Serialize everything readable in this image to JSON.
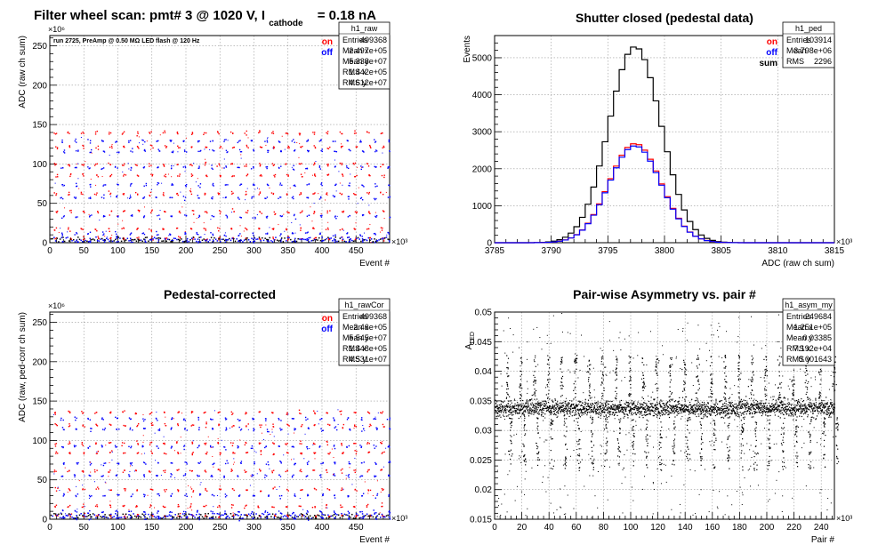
{
  "canvas_title": {
    "prefix": "Filter wheel scan: pmt#   3 @  1020 V, I",
    "subscript": "cathode",
    "suffix": "= 0.18 nA"
  },
  "colors": {
    "on": "#ff0000",
    "off": "#0000ff",
    "sum": "#000000",
    "grid": "#888888"
  },
  "chart_data": [
    {
      "id": "raw",
      "type": "scatter",
      "title": "",
      "annotation": "run 2725, PreAmp @ 0.50 MΩ   LED flash @  120 Hz",
      "xlabel": "Event #",
      "ylabel": "ADC (raw ch sum)",
      "x_exponent": "×10³",
      "y_exponent": "×10⁶",
      "xlim": [
        0,
        499.368
      ],
      "ylim": [
        0,
        263
      ],
      "xticks": [
        0,
        50,
        100,
        150,
        200,
        250,
        300,
        350,
        400,
        450
      ],
      "yticks": [
        0,
        50,
        100,
        150,
        200,
        250
      ],
      "grid": true,
      "legend": {
        "position": "top-right",
        "items": [
          {
            "label": "on",
            "color": "#ff0000"
          },
          {
            "label": "off",
            "color": "#0000ff"
          }
        ]
      },
      "stats": {
        "name": "h1_raw",
        "rows": [
          [
            "Entries",
            "499368"
          ],
          [
            "Mean x",
            "2.497e+05"
          ],
          [
            "Mean y",
            "5.338e+07"
          ],
          [
            "RMS x",
            "1.442e+05"
          ],
          [
            "RMS y",
            "4.612e+07"
          ]
        ]
      },
      "bands": {
        "period": 20,
        "blocks_per_period": 2,
        "block_width": 8,
        "on_levels": [
          140,
          122,
          100,
          86,
          63,
          40,
          18,
          6
        ],
        "off_levels": [
          130,
          117,
          96,
          74,
          58,
          34,
          12,
          3
        ]
      }
    },
    {
      "id": "ped",
      "type": "line",
      "title": "Shutter closed (pedestal data)",
      "xlabel": "ADC (raw ch sum)",
      "ylabel": "Events",
      "x_exponent": "×10³",
      "xlim": [
        3785,
        3815
      ],
      "ylim": [
        0,
        5600
      ],
      "xticks": [
        3785,
        3790,
        3795,
        3800,
        3805,
        3810,
        3815
      ],
      "yticks": [
        0,
        1000,
        2000,
        3000,
        4000,
        5000
      ],
      "grid": true,
      "legend": {
        "position": "top-right",
        "items": [
          {
            "label": "on",
            "color": "#ff0000"
          },
          {
            "label": "off",
            "color": "#0000ff"
          },
          {
            "label": "sum",
            "color": "#000000"
          }
        ]
      },
      "stats": {
        "name": "h1_ped",
        "rows": [
          [
            "Entries",
            "103914"
          ],
          [
            "Mean",
            "3.798e+06"
          ],
          [
            "RMS",
            "2296"
          ]
        ]
      },
      "series": [
        {
          "name": "sum",
          "color": "#000000",
          "peak": 5300,
          "center": 3797.4,
          "sigma": 2.3
        },
        {
          "name": "on",
          "color": "#ff0000",
          "peak": 2680,
          "center": 3797.4,
          "sigma": 2.3
        },
        {
          "name": "off",
          "color": "#0000ff",
          "peak": 2620,
          "center": 3797.4,
          "sigma": 2.3
        }
      ]
    },
    {
      "id": "rawcor",
      "type": "scatter",
      "title": "Pedestal-corrected",
      "xlabel": "Event #",
      "ylabel": "ADC (raw, ped-corr ch sum)",
      "x_exponent": "×10³",
      "y_exponent": "×10⁶",
      "xlim": [
        0,
        499.368
      ],
      "ylim": [
        0,
        263
      ],
      "xticks": [
        0,
        50,
        100,
        150,
        200,
        250,
        300,
        350,
        400,
        450
      ],
      "yticks": [
        0,
        50,
        100,
        150,
        200,
        250
      ],
      "grid": true,
      "legend": {
        "position": "top-right",
        "items": [
          {
            "label": "on",
            "color": "#ff0000"
          },
          {
            "label": "off",
            "color": "#0000ff"
          }
        ]
      },
      "stats": {
        "name": "h1_rawCor",
        "rows": [
          [
            "Entries",
            "499368"
          ],
          [
            "Mean x",
            "2.46e+05"
          ],
          [
            "Mean y",
            "5.545e+07"
          ],
          [
            "RMS x",
            "1.448e+05"
          ],
          [
            "RMS y",
            "4.531e+07"
          ]
        ]
      },
      "bands": {
        "period": 20,
        "blocks_per_period": 2,
        "block_width": 8,
        "on_levels": [
          136,
          120,
          97,
          85,
          62,
          38,
          17,
          5
        ],
        "off_levels": [
          128,
          115,
          93,
          72,
          56,
          31,
          10,
          2
        ]
      }
    },
    {
      "id": "asym",
      "type": "scatter",
      "title": "Pair-wise Asymmetry vs. pair #",
      "xlabel": "Pair #",
      "ylabel": "A_LED",
      "x_exponent": "×10³",
      "xlim": [
        0,
        249.684
      ],
      "ylim": [
        0.015,
        0.05
      ],
      "xticks": [
        0,
        20,
        40,
        60,
        80,
        100,
        120,
        140,
        160,
        180,
        200,
        220,
        240
      ],
      "yticks": [
        0.015,
        0.02,
        0.025,
        0.03,
        0.035,
        0.04,
        0.045,
        0.05
      ],
      "grid": true,
      "stats": {
        "name": "h1_asym_my",
        "rows": [
          [
            "Entries",
            "249684"
          ],
          [
            "Mean x",
            "1.251e+05"
          ],
          [
            "Mean y",
            "0.03385"
          ],
          [
            "RMS x",
            "7.192e+04"
          ],
          [
            "RMS y",
            "0.001643"
          ]
        ]
      },
      "band": {
        "center": 0.0338,
        "half_width": 0.0015,
        "spike_period": 10,
        "spike_up": 0.0075,
        "spike_down": 0.009
      }
    }
  ]
}
